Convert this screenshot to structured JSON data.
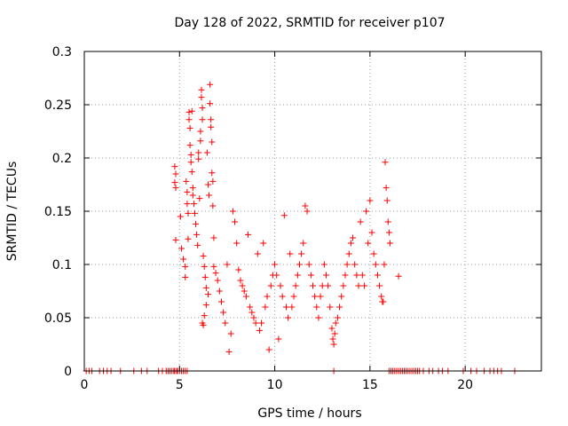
{
  "chart_data": {
    "type": "scatter",
    "title": "Day 128 of 2022, SRMTID for receiver p107",
    "xlabel": "GPS time / hours",
    "ylabel": "SRMTID / TECUs",
    "xlim": [
      0,
      24
    ],
    "ylim": [
      0,
      0.3
    ],
    "xticks": [
      0,
      5,
      10,
      15,
      20
    ],
    "xtick_labels": [
      "0",
      "5",
      "10",
      "15",
      "20"
    ],
    "yticks": [
      0,
      0.05,
      0.1,
      0.15,
      0.2,
      0.25,
      0.3
    ],
    "ytick_labels": [
      "0",
      "0.05",
      "0.1",
      "0.15",
      "0.2",
      "0.25",
      "0.3"
    ],
    "grid": true,
    "marker": "plus",
    "color": "#ff0000",
    "series": [
      {
        "name": "SRMTID",
        "points": [
          [
            0.1,
            0
          ],
          [
            0.25,
            0
          ],
          [
            0.4,
            0
          ],
          [
            0.8,
            0
          ],
          [
            1.0,
            0
          ],
          [
            1.2,
            0
          ],
          [
            1.4,
            0
          ],
          [
            1.9,
            0
          ],
          [
            2.6,
            0
          ],
          [
            3.0,
            0
          ],
          [
            3.3,
            0
          ],
          [
            3.9,
            0
          ],
          [
            4.1,
            0
          ],
          [
            4.3,
            0
          ],
          [
            4.4,
            0
          ],
          [
            4.5,
            0
          ],
          [
            4.6,
            0
          ],
          [
            4.7,
            0
          ],
          [
            4.75,
            0
          ],
          [
            4.85,
            0
          ],
          [
            4.9,
            0
          ],
          [
            5.0,
            0
          ],
          [
            5.1,
            0
          ],
          [
            5.2,
            0
          ],
          [
            5.3,
            0
          ],
          [
            5.4,
            0
          ],
          [
            13.1,
            0
          ],
          [
            16.0,
            0
          ],
          [
            16.1,
            0
          ],
          [
            16.2,
            0
          ],
          [
            16.3,
            0
          ],
          [
            16.4,
            0
          ],
          [
            16.5,
            0
          ],
          [
            16.6,
            0
          ],
          [
            16.7,
            0
          ],
          [
            16.8,
            0
          ],
          [
            16.9,
            0
          ],
          [
            17.0,
            0
          ],
          [
            17.1,
            0
          ],
          [
            17.2,
            0
          ],
          [
            17.3,
            0
          ],
          [
            17.4,
            0
          ],
          [
            17.5,
            0
          ],
          [
            17.6,
            0
          ],
          [
            17.8,
            0
          ],
          [
            18.1,
            0
          ],
          [
            18.3,
            0
          ],
          [
            18.6,
            0
          ],
          [
            18.8,
            0
          ],
          [
            19.1,
            0
          ],
          [
            19.9,
            0
          ],
          [
            20.3,
            0
          ],
          [
            20.6,
            0
          ],
          [
            21.0,
            0
          ],
          [
            21.3,
            0
          ],
          [
            21.5,
            0
          ],
          [
            21.7,
            0
          ],
          [
            21.9,
            0
          ],
          [
            22.6,
            0
          ],
          [
            4.75,
            0.192
          ],
          [
            4.75,
            0.177
          ],
          [
            4.8,
            0.172
          ],
          [
            4.8,
            0.185
          ],
          [
            4.8,
            0.123
          ],
          [
            5.05,
            0.145
          ],
          [
            5.1,
            0.115
          ],
          [
            5.2,
            0.105
          ],
          [
            5.3,
            0.098
          ],
          [
            5.3,
            0.088
          ],
          [
            5.35,
            0.178
          ],
          [
            5.4,
            0.168
          ],
          [
            5.4,
            0.157
          ],
          [
            5.45,
            0.148
          ],
          [
            5.45,
            0.124
          ],
          [
            5.5,
            0.243
          ],
          [
            5.5,
            0.236
          ],
          [
            5.55,
            0.228
          ],
          [
            5.55,
            0.212
          ],
          [
            5.6,
            0.203
          ],
          [
            5.6,
            0.196
          ],
          [
            5.65,
            0.244
          ],
          [
            5.65,
            0.187
          ],
          [
            5.7,
            0.172
          ],
          [
            5.7,
            0.165
          ],
          [
            5.75,
            0.157
          ],
          [
            5.8,
            0.148
          ],
          [
            5.85,
            0.138
          ],
          [
            5.9,
            0.128
          ],
          [
            5.95,
            0.118
          ],
          [
            6.0,
            0.205
          ],
          [
            6.0,
            0.199
          ],
          [
            6.05,
            0.162
          ],
          [
            6.1,
            0.225
          ],
          [
            6.1,
            0.216
          ],
          [
            6.15,
            0.264
          ],
          [
            6.15,
            0.257
          ],
          [
            6.2,
            0.247
          ],
          [
            6.2,
            0.236
          ],
          [
            6.25,
            0.108
          ],
          [
            6.3,
            0.098
          ],
          [
            6.35,
            0.088
          ],
          [
            6.4,
            0.078
          ],
          [
            6.45,
            0.205
          ],
          [
            6.5,
            0.175
          ],
          [
            6.55,
            0.165
          ],
          [
            6.6,
            0.269
          ],
          [
            6.6,
            0.251
          ],
          [
            6.65,
            0.236
          ],
          [
            6.65,
            0.229
          ],
          [
            6.7,
            0.215
          ],
          [
            6.7,
            0.186
          ],
          [
            6.75,
            0.178
          ],
          [
            6.75,
            0.155
          ],
          [
            6.8,
            0.125
          ],
          [
            6.8,
            0.098
          ],
          [
            6.2,
            0.045
          ],
          [
            6.25,
            0.043
          ],
          [
            6.3,
            0.052
          ],
          [
            6.4,
            0.062
          ],
          [
            6.5,
            0.072
          ],
          [
            6.9,
            0.092
          ],
          [
            7.0,
            0.085
          ],
          [
            7.1,
            0.075
          ],
          [
            7.2,
            0.065
          ],
          [
            7.3,
            0.055
          ],
          [
            7.4,
            0.045
          ],
          [
            7.5,
            0.1
          ],
          [
            7.6,
            0.018
          ],
          [
            7.7,
            0.035
          ],
          [
            7.8,
            0.15
          ],
          [
            7.9,
            0.14
          ],
          [
            8.0,
            0.12
          ],
          [
            8.1,
            0.095
          ],
          [
            8.2,
            0.085
          ],
          [
            8.3,
            0.08
          ],
          [
            8.4,
            0.075
          ],
          [
            8.5,
            0.07
          ],
          [
            8.6,
            0.128
          ],
          [
            8.7,
            0.06
          ],
          [
            8.8,
            0.055
          ],
          [
            8.9,
            0.05
          ],
          [
            9.0,
            0.045
          ],
          [
            9.1,
            0.11
          ],
          [
            9.2,
            0.038
          ],
          [
            9.3,
            0.045
          ],
          [
            9.4,
            0.12
          ],
          [
            9.5,
            0.06
          ],
          [
            9.6,
            0.07
          ],
          [
            9.7,
            0.02
          ],
          [
            9.8,
            0.08
          ],
          [
            9.9,
            0.09
          ],
          [
            10.0,
            0.1
          ],
          [
            10.1,
            0.09
          ],
          [
            10.2,
            0.03
          ],
          [
            10.3,
            0.08
          ],
          [
            10.4,
            0.07
          ],
          [
            10.5,
            0.146
          ],
          [
            10.6,
            0.06
          ],
          [
            10.7,
            0.05
          ],
          [
            10.8,
            0.11
          ],
          [
            10.9,
            0.06
          ],
          [
            11.0,
            0.07
          ],
          [
            11.1,
            0.08
          ],
          [
            11.2,
            0.09
          ],
          [
            11.3,
            0.1
          ],
          [
            11.4,
            0.11
          ],
          [
            11.5,
            0.12
          ],
          [
            11.6,
            0.155
          ],
          [
            11.7,
            0.15
          ],
          [
            11.8,
            0.1
          ],
          [
            11.9,
            0.09
          ],
          [
            12.0,
            0.08
          ],
          [
            12.1,
            0.07
          ],
          [
            12.2,
            0.06
          ],
          [
            12.3,
            0.05
          ],
          [
            12.4,
            0.07
          ],
          [
            12.5,
            0.08
          ],
          [
            12.6,
            0.1
          ],
          [
            12.7,
            0.09
          ],
          [
            12.8,
            0.08
          ],
          [
            12.9,
            0.06
          ],
          [
            13.0,
            0.04
          ],
          [
            13.05,
            0.03
          ],
          [
            13.1,
            0.025
          ],
          [
            13.15,
            0.035
          ],
          [
            13.2,
            0.045
          ],
          [
            13.3,
            0.05
          ],
          [
            13.4,
            0.06
          ],
          [
            13.5,
            0.07
          ],
          [
            13.6,
            0.08
          ],
          [
            13.7,
            0.09
          ],
          [
            13.8,
            0.1
          ],
          [
            13.9,
            0.11
          ],
          [
            14.0,
            0.12
          ],
          [
            14.1,
            0.125
          ],
          [
            14.2,
            0.1
          ],
          [
            14.3,
            0.09
          ],
          [
            14.4,
            0.08
          ],
          [
            14.5,
            0.14
          ],
          [
            14.6,
            0.09
          ],
          [
            14.7,
            0.08
          ],
          [
            14.8,
            0.15
          ],
          [
            14.9,
            0.12
          ],
          [
            15.0,
            0.16
          ],
          [
            15.1,
            0.13
          ],
          [
            15.2,
            0.11
          ],
          [
            15.3,
            0.1
          ],
          [
            15.4,
            0.09
          ],
          [
            15.5,
            0.08
          ],
          [
            15.6,
            0.07
          ],
          [
            15.65,
            0.065
          ],
          [
            15.7,
            0.065
          ],
          [
            15.75,
            0.1
          ],
          [
            15.8,
            0.196
          ],
          [
            15.85,
            0.172
          ],
          [
            15.9,
            0.16
          ],
          [
            15.95,
            0.14
          ],
          [
            16.0,
            0.13
          ],
          [
            16.05,
            0.12
          ],
          [
            16.5,
            0.089
          ]
        ]
      }
    ]
  }
}
